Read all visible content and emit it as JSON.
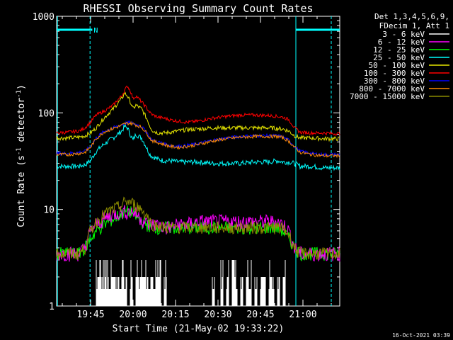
{
  "chart_data": {
    "type": "line",
    "title": "RHESSI Observing Summary Count Rates",
    "xlabel": "Start Time (21-May-02 19:33:22)",
    "ylabel_main": "Count Rate (s",
    "ylabel_sup1": "-1",
    "ylabel_mid": " detector",
    "ylabel_sup2": "-1",
    "ylabel_end": ")",
    "y_scale": "log",
    "ylim": [
      1,
      1000
    ],
    "xlim_minutes": [
      0,
      100
    ],
    "x_ticks": [
      {
        "label": "19:45",
        "minute": 12
      },
      {
        "label": "20:00",
        "minute": 27
      },
      {
        "label": "20:15",
        "minute": 42
      },
      {
        "label": "20:30",
        "minute": 57
      },
      {
        "label": "20:45",
        "minute": 72
      },
      {
        "label": "21:00",
        "minute": 87
      }
    ],
    "y_ticks": [
      {
        "label": "1",
        "value": 1
      },
      {
        "label": "10",
        "value": 10
      },
      {
        "label": "100",
        "value": 100
      },
      {
        "label": "1000",
        "value": 1000
      }
    ],
    "legend_header": [
      "Det 1,3,4,5,6,9,",
      "FDecim 1, Att 1"
    ],
    "legend_placement": "right",
    "series": [
      {
        "name": "3 - 6 keV",
        "color": "#ffffff"
      },
      {
        "name": "6 - 12 keV",
        "color": "#ff00ff"
      },
      {
        "name": "12 - 25 keV",
        "color": "#00ff00"
      },
      {
        "name": "25 - 50 keV",
        "color": "#00ffff"
      },
      {
        "name": "50 - 100 keV",
        "color": "#e6e600"
      },
      {
        "name": "100 - 300 keV",
        "color": "#ff0000"
      },
      {
        "name": "300 - 800 keV",
        "color": "#0000ff"
      },
      {
        "name": "800 - 7000 keV",
        "color": "#ff8c00"
      },
      {
        "name": "7000 - 15000 keV",
        "color": "#8b8b00"
      }
    ],
    "series_values": {
      "x": [
        0,
        4,
        8,
        10,
        12,
        14,
        17,
        20,
        23,
        24,
        25,
        26,
        27,
        28,
        30,
        32,
        33,
        34,
        36,
        38,
        40,
        43,
        46,
        50,
        55,
        60,
        65,
        70,
        75,
        78,
        80,
        82,
        84,
        86,
        90,
        94,
        98,
        100
      ],
      "6-12": [
        3.5,
        3.5,
        3.5,
        4,
        6,
        7,
        8,
        9,
        9.5,
        9.5,
        9.5,
        9.5,
        9.5,
        9,
        8,
        7,
        7,
        7,
        7,
        6.5,
        6.5,
        7,
        7,
        7.5,
        7.5,
        7.5,
        7.5,
        7.5,
        7.5,
        7.5,
        7,
        6,
        4,
        3.5,
        3.5,
        3.5,
        3.5,
        3.5
      ],
      "12-25": [
        3.5,
        3.5,
        3.5,
        4,
        5,
        6,
        7,
        8,
        9,
        9.5,
        9.5,
        9.5,
        9,
        8.5,
        7.5,
        7,
        6.5,
        6.5,
        6.5,
        6.5,
        6.5,
        6.5,
        6.5,
        6.5,
        6.5,
        6.5,
        6.5,
        6.5,
        6.5,
        6.5,
        6,
        5,
        4,
        3.5,
        3.5,
        3.5,
        3.5,
        3.5
      ],
      "25-50": [
        28,
        28,
        28,
        29,
        32,
        40,
        48,
        55,
        65,
        72,
        70,
        60,
        52,
        60,
        55,
        42,
        37,
        35,
        33,
        32,
        32,
        31,
        31,
        31,
        30,
        30,
        30,
        31,
        31,
        32,
        31,
        31,
        30,
        28,
        28,
        27,
        27,
        27
      ],
      "50-100": [
        55,
        55,
        56,
        58,
        62,
        70,
        90,
        110,
        140,
        160,
        150,
        130,
        110,
        120,
        110,
        85,
        72,
        65,
        62,
        62,
        63,
        65,
        67,
        68,
        70,
        70,
        70,
        70,
        70,
        69,
        68,
        65,
        58,
        55,
        55,
        54,
        54,
        54
      ],
      "100-300": [
        62,
        63,
        65,
        70,
        80,
        95,
        105,
        120,
        150,
        170,
        190,
        170,
        140,
        150,
        130,
        110,
        100,
        95,
        90,
        88,
        85,
        82,
        80,
        82,
        88,
        92,
        95,
        95,
        94,
        92,
        90,
        85,
        70,
        63,
        62,
        62,
        61,
        61
      ],
      "300-800": [
        38,
        38,
        39,
        40,
        45,
        55,
        65,
        70,
        75,
        78,
        79,
        79,
        78,
        76,
        72,
        62,
        55,
        52,
        50,
        48,
        46,
        45,
        46,
        48,
        52,
        55,
        57,
        58,
        58,
        58,
        56,
        52,
        45,
        40,
        38,
        37,
        37,
        37
      ],
      "800-7000": [
        37,
        37,
        38,
        39,
        44,
        54,
        64,
        69,
        74,
        77,
        78,
        78,
        77,
        75,
        71,
        61,
        54,
        51,
        49,
        47,
        45,
        44,
        45,
        47,
        51,
        54,
        56,
        57,
        57,
        57,
        55,
        51,
        44,
        39,
        37,
        36,
        36,
        36
      ],
      "7000-15000": [
        3.5,
        3.5,
        3.5,
        4,
        6,
        7.5,
        9,
        10,
        11,
        12,
        12,
        12,
        11.5,
        11,
        10,
        8.5,
        7.5,
        7,
        6.8,
        6.5,
        6.5,
        6.5,
        6.5,
        6.5,
        6.5,
        6.5,
        6.5,
        6.5,
        6.5,
        6.5,
        6.3,
        5.5,
        4,
        3.5,
        3.5,
        3.5,
        3.5,
        3.5
      ]
    },
    "sparse_3_6_spikes_minutes": [
      14,
      15,
      16,
      17,
      18,
      19,
      20,
      21,
      22,
      23,
      24,
      26,
      28,
      29,
      30,
      31,
      32,
      33,
      34,
      35,
      36,
      38,
      55,
      58,
      60,
      62,
      63,
      65,
      67,
      68,
      70,
      72,
      73,
      75,
      76,
      78,
      80
    ],
    "attenuator_bars": [
      {
        "label": "",
        "x0": 0,
        "x1": 11.8
      },
      {
        "label": "N",
        "x0": 11.8,
        "x1": 12.6
      },
      {
        "label": "",
        "x0": 84.5,
        "x1": 100
      }
    ]
  },
  "timestamp": "16-Oct-2021 03:39",
  "colors": {
    "axis": "#ffffff",
    "background": "#000000",
    "cyan_marker": "#00ffff"
  }
}
